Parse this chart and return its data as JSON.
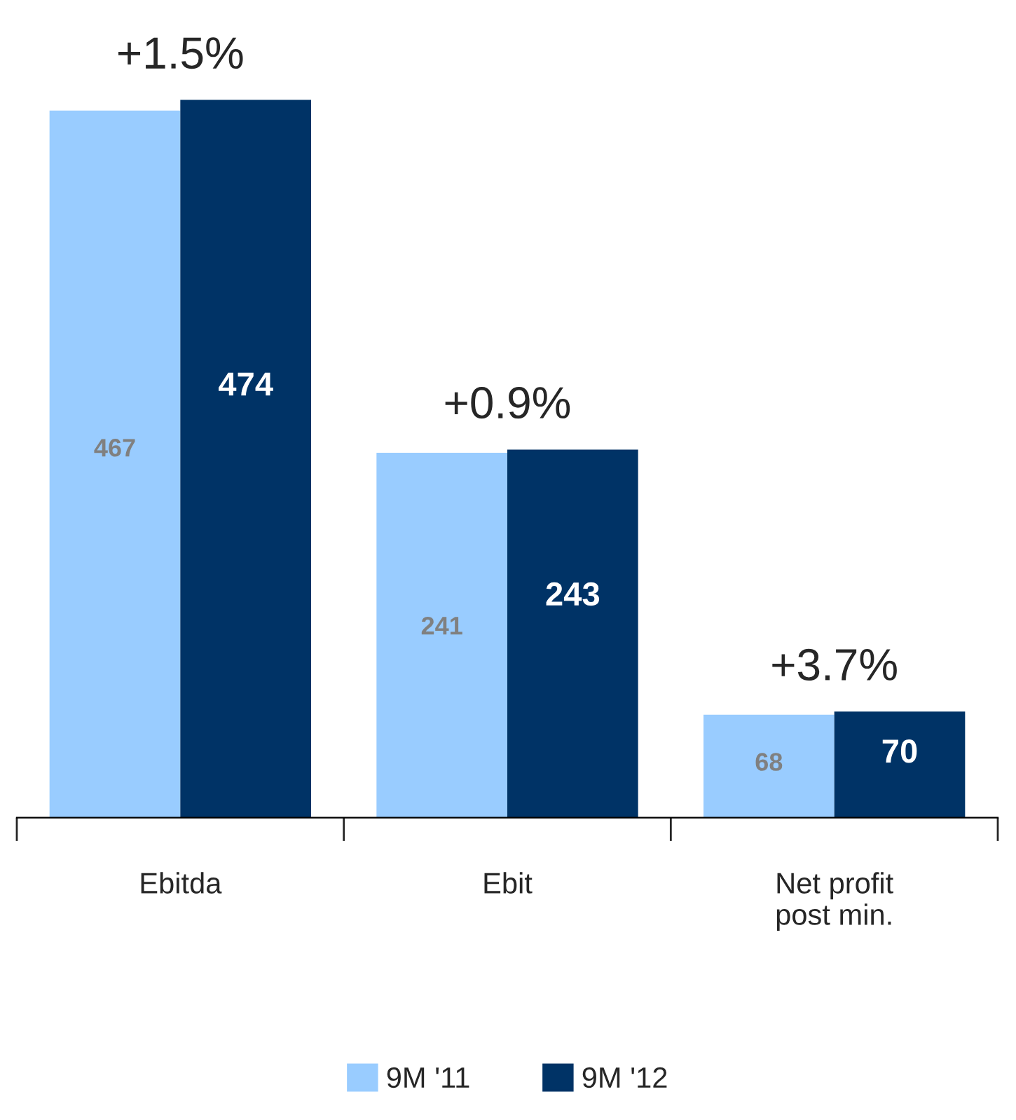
{
  "chart_data": {
    "type": "bar",
    "categories": [
      "Ebitda",
      "Ebit",
      "Net profit\npost min."
    ],
    "series": [
      {
        "name": "9M '11",
        "color": "#99ccff",
        "values": [
          467,
          241,
          68
        ]
      },
      {
        "name": "9M '12",
        "color": "#003366",
        "values": [
          474,
          243,
          70
        ]
      }
    ],
    "data_labels": true,
    "legend": "bottom",
    "grid": false,
    "annotations": [
      {
        "text": "+1.5%",
        "x": "Ebitda",
        "y": 474
      },
      {
        "text": "+0.9%",
        "x": "Ebit",
        "y": 243
      },
      {
        "text": "+3.7%",
        "x": "Net profit\npost min.",
        "y": 70
      }
    ]
  }
}
